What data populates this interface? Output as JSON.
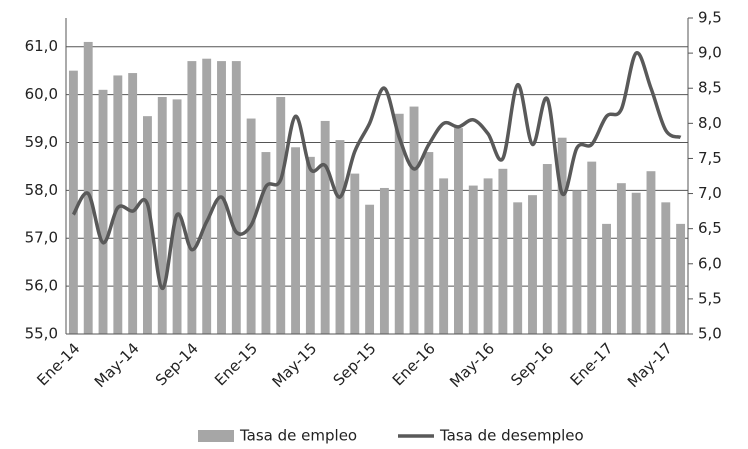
{
  "chart_data": {
    "type": "bar",
    "categories": [
      "Ene-14",
      null,
      null,
      null,
      "May-14",
      null,
      null,
      null,
      "Sep-14",
      null,
      null,
      null,
      "Ene-15",
      null,
      null,
      null,
      "May-15",
      null,
      null,
      null,
      "Sep-15",
      null,
      null,
      null,
      "Ene-16",
      null,
      null,
      null,
      "May-16",
      null,
      null,
      null,
      "Sep-16",
      null,
      null,
      null,
      "Ene-17",
      null,
      null,
      null,
      "May-17",
      null
    ],
    "series": [
      {
        "name": "Tasa de empleo",
        "type": "bar",
        "color": "#a6a6a6",
        "values": [
          60.5,
          61.1,
          60.1,
          60.4,
          60.45,
          59.55,
          59.95,
          59.9,
          60.7,
          60.75,
          60.7,
          60.7,
          59.5,
          58.8,
          59.95,
          58.9,
          58.7,
          59.45,
          59.05,
          58.35,
          57.7,
          58.05,
          59.6,
          59.75,
          58.8,
          58.25,
          59.3,
          58.1,
          58.25,
          58.45,
          57.75,
          57.9,
          58.55,
          59.1,
          58.0,
          58.6,
          57.3,
          58.15,
          57.95,
          58.4,
          57.75,
          57.3
        ]
      },
      {
        "name": "Tasa de desempleo",
        "type": "line",
        "axis": "y2",
        "color": "#595959",
        "values": [
          6.7,
          7.0,
          6.3,
          6.8,
          6.75,
          6.85,
          5.65,
          6.7,
          6.2,
          6.6,
          6.95,
          6.45,
          6.55,
          7.1,
          7.2,
          8.1,
          7.35,
          7.4,
          6.95,
          7.6,
          8.0,
          8.5,
          7.8,
          7.35,
          7.7,
          8.0,
          7.95,
          8.05,
          7.85,
          7.5,
          8.55,
          7.7,
          8.35,
          7.0,
          7.65,
          7.7,
          8.1,
          8.2,
          9.0,
          8.5,
          7.9,
          7.8
        ]
      }
    ],
    "ylim": [
      55,
      61.6
    ],
    "yticks": [
      {
        "value": 55,
        "label": "55,0"
      },
      {
        "value": 56,
        "label": "56,0"
      },
      {
        "value": 57,
        "label": "57,0"
      },
      {
        "value": 58,
        "label": "58,0"
      },
      {
        "value": 59,
        "label": "59,0"
      },
      {
        "value": 60,
        "label": "60,0"
      },
      {
        "value": 61,
        "label": "61,0"
      }
    ],
    "y2lim": [
      5,
      9.5
    ],
    "y2ticks": [
      {
        "value": 5,
        "label": "5,0"
      },
      {
        "value": 5.5,
        "label": "5,5"
      },
      {
        "value": 6,
        "label": "6,0"
      },
      {
        "value": 6.5,
        "label": "6,5"
      },
      {
        "value": 7,
        "label": "7,0"
      },
      {
        "value": 7.5,
        "label": "7,5"
      },
      {
        "value": 8,
        "label": "8,0"
      },
      {
        "value": 8.5,
        "label": "8,5"
      },
      {
        "value": 9,
        "label": "9,0"
      },
      {
        "value": 9.5,
        "label": "9,5"
      }
    ],
    "grid": true,
    "legend": "bottom"
  }
}
